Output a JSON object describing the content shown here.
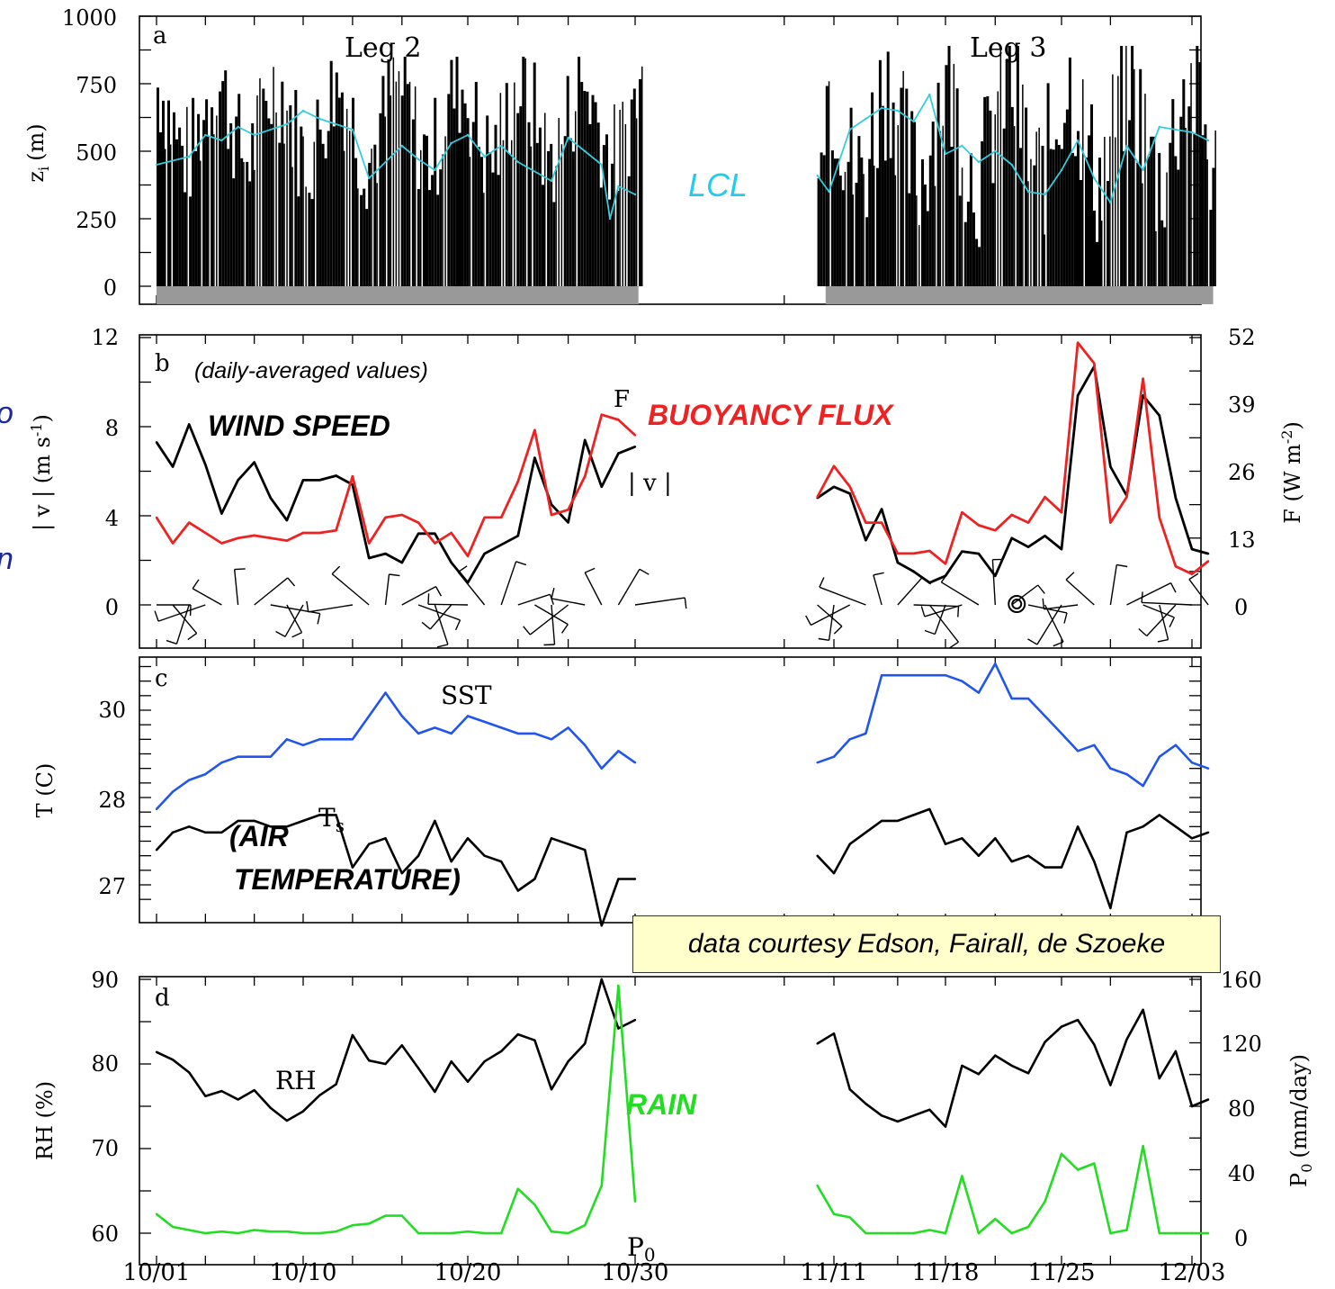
{
  "colors": {
    "zi_bars": "#000000",
    "lcl": "#33ccdd",
    "wind": "#000000",
    "flux": "#ee2222",
    "sst": "#2255ee",
    "ts": "#000000",
    "rh": "#000000",
    "rain": "#22dd22",
    "gap_bar": "#999999"
  },
  "x_ticks": [
    "10/01",
    "10/10",
    "10/20",
    "10/30",
    "11/11",
    "11/18",
    "11/25",
    "12/03"
  ],
  "credit": "data courtesy Edson, Fairall, de Szoeke",
  "margin_fragments": [
    "o",
    "n"
  ],
  "panels": {
    "a": {
      "letter": "a",
      "ylabel": "z",
      "ylabel_sub": "i",
      "ylabel_unit": "(m)",
      "yticks": [
        "1000",
        "750",
        "500",
        "250",
        "0"
      ],
      "leg2": "Leg 2",
      "leg3": "Leg 3",
      "lcl_label": "LCL"
    },
    "b": {
      "letter": "b",
      "note": "(daily-averaged values)",
      "ylabel_left": "| v | (m s",
      "ylabel_left_sup": "-1",
      "ylabel_left_close": ")",
      "ylabel_right": "F (W m",
      "ylabel_right_sup": "-2",
      "ylabel_right_close": ")",
      "yticks_left": [
        "12",
        "8",
        "4",
        "0"
      ],
      "yticks_right": [
        "52",
        "39",
        "26",
        "13",
        "0"
      ],
      "wind_label": "WIND SPEED",
      "flux_label": "BUOYANCY FLUX",
      "f_mark": "F",
      "v_mark": "| v |"
    },
    "c": {
      "letter": "c",
      "ylabel": "T (C)",
      "yticks": [
        "30",
        "28",
        "27"
      ],
      "sst_label": "SST",
      "ts_label": "T",
      "ts_sub": "s",
      "air_label_1": "(AIR",
      "air_label_2": "TEMPERATURE)"
    },
    "d": {
      "letter": "d",
      "ylabel_left": "RH (%)",
      "ylabel_right": "P",
      "ylabel_right_sub": "0",
      "ylabel_right_unit": "(mm/day)",
      "yticks_left": [
        "90",
        "80",
        "70",
        "60"
      ],
      "yticks_right": [
        "160",
        "120",
        "80",
        "40",
        "0"
      ],
      "rh_label": "RH",
      "rain_label": "RAIN",
      "p0_label": "P",
      "p0_sub": "0"
    }
  },
  "chart_data": [
    {
      "type": "bar",
      "panel": "a",
      "title": "",
      "ylabel": "z_i (m)",
      "ylim": [
        0,
        1000
      ],
      "series": [
        {
          "name": "LCL",
          "type": "line",
          "days": [
            1,
            3,
            4,
            5,
            6,
            7,
            9,
            10,
            11,
            13,
            14,
            16,
            17,
            18,
            19,
            20,
            21,
            22,
            23,
            25,
            26,
            27,
            28,
            28.5,
            29,
            30
          ],
          "values": [
            450,
            480,
            560,
            540,
            590,
            560,
            600,
            650,
            620,
            580,
            400,
            520,
            470,
            430,
            530,
            560,
            480,
            520,
            460,
            390,
            550,
            500,
            450,
            250,
            370,
            340
          ]
        },
        {
          "name": "LCL",
          "type": "line",
          "days": [
            41,
            41.7,
            43,
            44,
            45,
            46,
            47,
            48,
            49,
            50,
            51,
            52,
            53,
            54,
            55,
            56,
            57,
            58,
            59,
            60,
            61,
            62,
            63,
            64,
            65
          ],
          "values": [
            410,
            350,
            580,
            620,
            660,
            650,
            610,
            710,
            490,
            520,
            460,
            500,
            450,
            350,
            340,
            430,
            540,
            400,
            310,
            520,
            430,
            590,
            580,
            570,
            540
          ]
        }
      ],
      "zi_range_by_day": [
        [
          1,
          30,
          330,
          850
        ],
        [
          41,
          65,
          200,
          890
        ]
      ],
      "gaps_days": [
        [
          30.5,
          41
        ]
      ]
    },
    {
      "type": "line",
      "panel": "b",
      "ylabel": "| v | (m s-1)",
      "ylabel_right": "F (W m-2)",
      "ylim": [
        0,
        12
      ],
      "ylim_right": [
        0,
        52
      ],
      "series": [
        {
          "name": "| v |",
          "axis": "left",
          "days": [
            1,
            2,
            3,
            4,
            5,
            6,
            7,
            8,
            9,
            10,
            11,
            12,
            13,
            14,
            15,
            16,
            17,
            18,
            19,
            20,
            21,
            22,
            23,
            24,
            25,
            26,
            27,
            28,
            29,
            30
          ],
          "values": [
            7.3,
            6.2,
            8.1,
            6.3,
            4.1,
            5.6,
            6.4,
            4.8,
            3.8,
            5.6,
            5.6,
            5.8,
            5.4,
            2.1,
            2.3,
            1.9,
            3.2,
            3.2,
            1.9,
            1.0,
            2.3,
            2.7,
            3.1,
            6.6,
            4.5,
            3.7,
            7.4,
            5.3,
            6.8,
            7.1
          ]
        },
        {
          "name": "F",
          "axis": "right",
          "days": [
            1,
            2,
            3,
            4,
            5,
            6,
            7,
            8,
            9,
            10,
            11,
            12,
            13,
            14,
            15,
            16,
            17,
            18,
            19,
            20,
            21,
            22,
            23,
            24,
            25,
            26,
            27,
            28,
            29,
            30
          ],
          "values": [
            17,
            12,
            16,
            14,
            12,
            13,
            13.5,
            13,
            12.5,
            14,
            14,
            14.5,
            25,
            12,
            17,
            17.5,
            16,
            12,
            14,
            9.5,
            17,
            17,
            24,
            34,
            17.5,
            18.5,
            25,
            37,
            36,
            33
          ]
        },
        {
          "name": "| v |",
          "axis": "left",
          "days": [
            41,
            42,
            43,
            44,
            45,
            46,
            47,
            48,
            49,
            50,
            51,
            52,
            53,
            54,
            55,
            56,
            57,
            58,
            59,
            60,
            61,
            62,
            63,
            64,
            65
          ],
          "values": [
            4.8,
            5.3,
            5.0,
            2.9,
            4.3,
            1.9,
            1.5,
            1.0,
            1.3,
            2.4,
            2.3,
            1.3,
            3.0,
            2.6,
            3.1,
            2.5,
            9.4,
            10.7,
            6.2,
            4.9,
            9.4,
            8.5,
            4.8,
            2.5,
            2.3
          ]
        },
        {
          "name": "F",
          "axis": "right",
          "days": [
            41,
            42,
            43,
            44,
            45,
            46,
            47,
            48,
            49,
            50,
            51,
            52,
            53,
            54,
            55,
            56,
            57,
            58,
            59,
            60,
            61,
            62,
            63,
            64,
            65
          ],
          "values": [
            21,
            27,
            23,
            16,
            16,
            10,
            10,
            10.5,
            8,
            18,
            15.5,
            14.5,
            17.5,
            16,
            21,
            18,
            51,
            47,
            16,
            21,
            44,
            17,
            7.5,
            6,
            8.5
          ]
        }
      ]
    },
    {
      "type": "line",
      "panel": "c",
      "ylabel": "T (C)",
      "ylim": [
        26.6,
        31.0
      ],
      "series": [
        {
          "name": "SST",
          "days": [
            1,
            2,
            3,
            4,
            5,
            6,
            7,
            8,
            9,
            10,
            11,
            12,
            13,
            14,
            15,
            16,
            17,
            18,
            19,
            20,
            21,
            22,
            23,
            24,
            25,
            26,
            27,
            28,
            29,
            30
          ],
          "values": [
            28.3,
            28.6,
            28.8,
            28.9,
            29.1,
            29.2,
            29.2,
            29.2,
            29.5,
            29.4,
            29.5,
            29.5,
            29.5,
            29.9,
            30.3,
            29.9,
            29.6,
            29.7,
            29.6,
            29.9,
            29.8,
            29.7,
            29.6,
            29.6,
            29.5,
            29.7,
            29.4,
            29.0,
            29.3,
            29.1
          ]
        },
        {
          "name": "T_s",
          "days": [
            1,
            2,
            3,
            4,
            5,
            6,
            7,
            8,
            9,
            10,
            11,
            12,
            13,
            14,
            15,
            16,
            17,
            18,
            19,
            20,
            21,
            22,
            23,
            24,
            25,
            26,
            27,
            28,
            29,
            30
          ],
          "values": [
            27.6,
            27.9,
            28.0,
            27.9,
            27.9,
            28.1,
            28.1,
            28.0,
            28.0,
            28.1,
            28.2,
            28.2,
            27.3,
            27.7,
            27.8,
            27.2,
            27.5,
            28.1,
            27.4,
            27.8,
            27.5,
            27.4,
            26.9,
            27.1,
            27.8,
            27.7,
            27.6,
            26.3,
            27.1,
            27.1
          ]
        },
        {
          "name": "SST",
          "days": [
            41,
            42,
            43,
            44,
            45,
            46,
            47,
            48,
            49,
            50,
            51,
            52,
            53,
            54,
            55,
            56,
            57,
            58,
            59,
            60,
            61,
            62,
            63,
            64,
            65
          ],
          "values": [
            29.1,
            29.2,
            29.5,
            29.6,
            30.6,
            30.6,
            30.6,
            30.6,
            30.6,
            30.5,
            30.3,
            30.8,
            30.2,
            30.2,
            29.9,
            29.6,
            29.3,
            29.4,
            29.0,
            28.9,
            28.7,
            29.2,
            29.4,
            29.1,
            29.0
          ]
        },
        {
          "name": "T_s",
          "days": [
            41,
            42,
            43,
            44,
            45,
            46,
            47,
            48,
            49,
            50,
            51,
            52,
            53,
            54,
            55,
            56,
            57,
            58,
            59,
            60,
            61,
            62,
            63,
            64,
            65
          ],
          "values": [
            27.5,
            27.2,
            27.7,
            27.9,
            28.1,
            28.1,
            28.2,
            28.3,
            27.7,
            27.8,
            27.5,
            27.8,
            27.4,
            27.5,
            27.3,
            27.3,
            28.0,
            27.4,
            26.6,
            27.9,
            28.0,
            28.2,
            28.0,
            27.8,
            27.9
          ]
        }
      ]
    },
    {
      "type": "line",
      "panel": "d",
      "ylabel": "RH (%)",
      "ylabel_right": "P_0 (mm/day)",
      "ylim": [
        60,
        90
      ],
      "ylim_right": [
        0,
        160
      ],
      "series": [
        {
          "name": "RH",
          "axis": "left",
          "days": [
            1,
            2,
            3,
            4,
            5,
            6,
            7,
            8,
            9,
            10,
            11,
            12,
            13,
            14,
            15,
            16,
            17,
            18,
            19,
            20,
            21,
            22,
            23,
            24,
            25,
            26,
            27,
            28,
            29,
            30
          ],
          "values": [
            81.4,
            80.5,
            79.0,
            76.2,
            76.8,
            75.8,
            76.9,
            74.8,
            73.3,
            74.4,
            76.3,
            77.6,
            83.4,
            80.4,
            80.0,
            82.2,
            79.5,
            76.7,
            80.3,
            77.9,
            80.3,
            81.5,
            83.5,
            82.8,
            77.0,
            80.3,
            82.4,
            90.0,
            84.2,
            85.2
          ]
        },
        {
          "name": "P_0",
          "axis": "right",
          "days": [
            1,
            2,
            3,
            4,
            5,
            6,
            7,
            8,
            9,
            10,
            11,
            12,
            13,
            14,
            15,
            16,
            17,
            18,
            19,
            20,
            21,
            22,
            23,
            24,
            25,
            26,
            27,
            28,
            29,
            30
          ],
          "values": [
            12,
            4,
            2,
            0,
            1,
            0,
            2,
            1,
            1,
            0,
            0,
            1,
            5,
            6,
            11,
            11,
            0,
            0,
            0,
            1,
            0,
            0,
            28,
            18,
            1,
            0,
            5,
            30,
            156,
            20
          ]
        },
        {
          "name": "RH",
          "axis": "left",
          "days": [
            41,
            42,
            43,
            44,
            45,
            46,
            47,
            48,
            49,
            50,
            51,
            52,
            53,
            54,
            55,
            56,
            57,
            58,
            59,
            60,
            61,
            62,
            63,
            64,
            65
          ],
          "values": [
            82.4,
            83.6,
            77.0,
            75.3,
            73.9,
            73.2,
            73.9,
            74.6,
            72.6,
            79.8,
            78.8,
            81.0,
            79.8,
            78.9,
            82.6,
            84.4,
            85.2,
            82.3,
            77.5,
            82.9,
            86.4,
            78.3,
            81.5,
            75.0,
            75.8
          ]
        },
        {
          "name": "P_0",
          "axis": "right",
          "days": [
            41,
            42,
            43,
            44,
            45,
            46,
            47,
            48,
            49,
            50,
            51,
            52,
            53,
            54,
            55,
            56,
            57,
            58,
            59,
            60,
            61,
            62,
            63,
            64,
            65
          ],
          "values": [
            30,
            12,
            10,
            0,
            0,
            0,
            0,
            2,
            0,
            36,
            0,
            9,
            0,
            4,
            20,
            50,
            40,
            44,
            0,
            2,
            55,
            0,
            0,
            0,
            0
          ]
        }
      ]
    }
  ]
}
